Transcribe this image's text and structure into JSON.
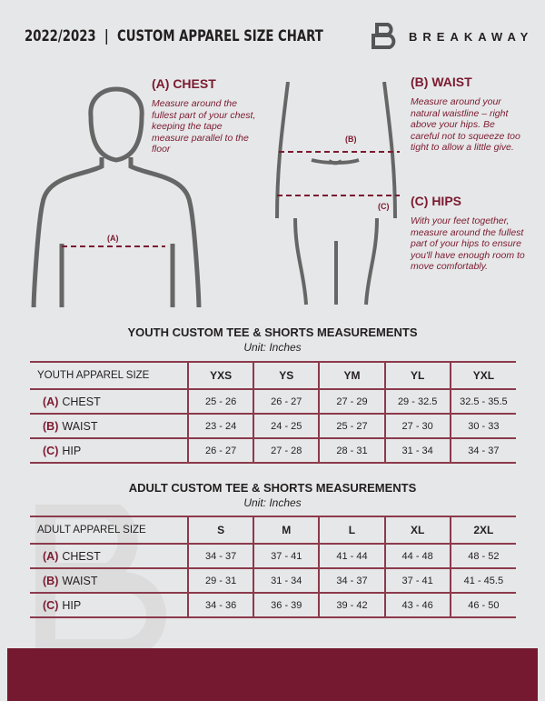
{
  "header": {
    "title": "2022/2023  |  CUSTOM APPAREL SIZE CHART",
    "brand": "BREAKAWAY"
  },
  "guide": {
    "chest": {
      "heading": "(A) CHEST",
      "text": "Measure around the fullest part of your chest, keeping the tape measure parallel to the floor",
      "marker": "(A)"
    },
    "waist": {
      "heading": "(B) WAIST",
      "text": "Measure around your natural waistline – right above your hips. Be careful not to squeeze too tight to allow a little give.",
      "marker": "(B)"
    },
    "hips": {
      "heading": "(C) HIPS",
      "text": "With your feet together, measure around the fullest part of your hips to ensure you'll have enough room to move comfortably.",
      "marker": "(C)"
    }
  },
  "youth": {
    "title": "YOUTH CUSTOM TEE & SHORTS MEASUREMENTS",
    "unit": "Unit: Inches",
    "size_label": "YOUTH APPAREL SIZE",
    "sizes": [
      "YXS",
      "YS",
      "YM",
      "YL",
      "YXL"
    ],
    "rows": [
      {
        "letter": "(A)",
        "name": "CHEST",
        "values": [
          "25 - 26",
          "26 - 27",
          "27 - 29",
          "29 - 32.5",
          "32.5 - 35.5"
        ]
      },
      {
        "letter": "(B)",
        "name": "WAIST",
        "values": [
          "23 - 24",
          "24 - 25",
          "25 - 27",
          "27 - 30",
          "30 - 33"
        ]
      },
      {
        "letter": "(C)",
        "name": "HIP",
        "values": [
          "26 - 27",
          "27 - 28",
          "28 - 31",
          "31 - 34",
          "34 - 37"
        ]
      }
    ]
  },
  "adult": {
    "title": "ADULT CUSTOM TEE & SHORTS MEASUREMENTS",
    "unit": "Unit: Inches",
    "size_label": "ADULT APPAREL SIZE",
    "sizes": [
      "S",
      "M",
      "L",
      "XL",
      "2XL"
    ],
    "rows": [
      {
        "letter": "(A)",
        "name": "CHEST",
        "values": [
          "34 - 37",
          "37 - 41",
          "41 - 44",
          "44 - 48",
          "48 - 52"
        ]
      },
      {
        "letter": "(B)",
        "name": "WAIST",
        "values": [
          "29 - 31",
          "31 - 34",
          "34 - 37",
          "37 - 41",
          "41 - 45.5"
        ]
      },
      {
        "letter": "(C)",
        "name": "HIP",
        "values": [
          "34 - 36",
          "36 - 39",
          "39 - 42",
          "43 - 46",
          "46 - 50"
        ]
      }
    ]
  },
  "colors": {
    "accent": "#7a1a30",
    "background": "#e6e7e8",
    "footer": "#74192f"
  }
}
